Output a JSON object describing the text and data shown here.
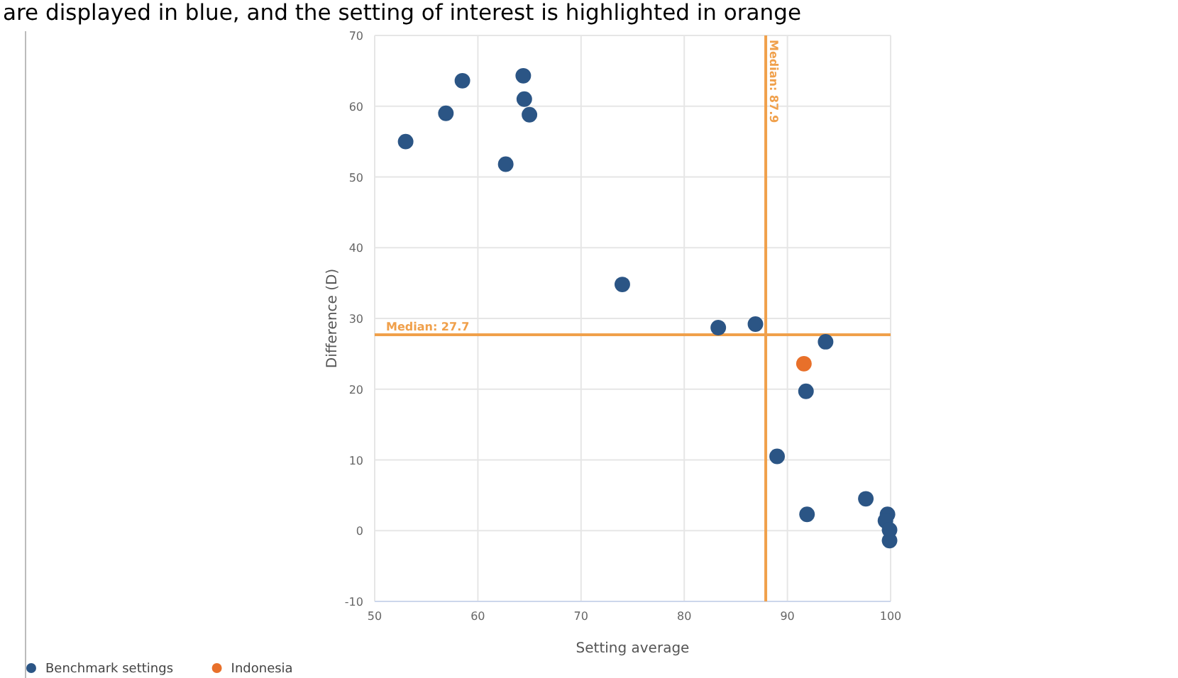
{
  "chart_data": {
    "type": "scatter",
    "annotations": [
      "are displayed in blue, and the setting of interest is highlighted in orange"
    ],
    "xlabel": "Setting average",
    "ylabel": "Difference (D)",
    "xlim": [
      50,
      100
    ],
    "xticks": [
      50,
      60,
      70,
      80,
      90,
      100
    ],
    "ylim": [
      -10,
      70
    ],
    "yticks": [
      -10,
      0,
      10,
      20,
      30,
      40,
      50,
      60,
      70
    ],
    "grid": true,
    "legend": "bottom left",
    "marker": "circle",
    "series": [
      {
        "name": "Benchmark settings",
        "color": "#2b5585",
        "x": [
          53.0,
          56.9,
          58.5,
          64.4,
          64.5,
          65.0,
          62.7,
          74.0,
          83.3,
          86.9,
          93.7,
          91.8,
          89.0,
          97.6,
          91.9,
          99.7,
          99.5,
          99.9,
          99.9
        ],
        "values": [
          55.0,
          59.0,
          63.6,
          64.3,
          61.0,
          58.8,
          51.8,
          34.8,
          28.7,
          29.2,
          26.7,
          19.7,
          10.5,
          4.5,
          2.3,
          2.3,
          1.4,
          0.1,
          -1.4
        ]
      },
      {
        "name": "Indonesia",
        "color": "#e8702a",
        "x": [
          91.6
        ],
        "values": [
          23.6
        ]
      }
    ],
    "ref_lines": [
      {
        "axis": "x",
        "value": 87.9,
        "label": "Median: 87.9",
        "color": "#f0a04b"
      },
      {
        "axis": "y",
        "value": 27.7,
        "label": "Median: 27.7",
        "color": "#f0a04b"
      }
    ]
  }
}
